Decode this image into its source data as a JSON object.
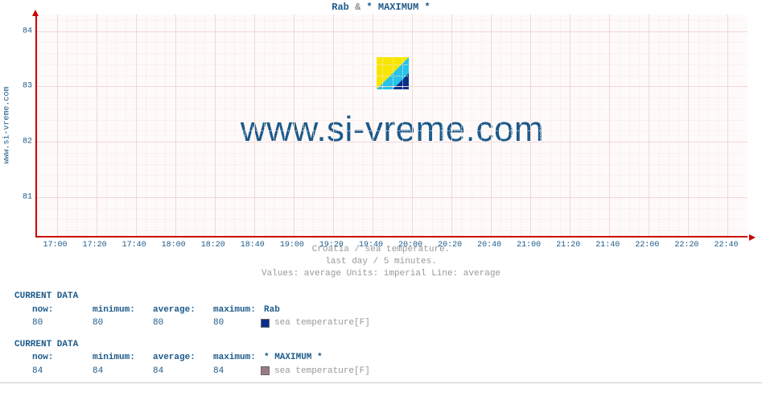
{
  "chart": {
    "title_parts": {
      "loc": "Rab",
      "amp": "&",
      "max": "* MAXIMUM *"
    },
    "ylabel_outer": "www.si-vreme.com",
    "watermark_text": "www.si-vreme.com",
    "caption_line1": "Croatia / sea temperature.",
    "caption_line2": "last day / 5 minutes.",
    "caption_line3": "Values: average  Units: imperial  Line: average",
    "type": "line",
    "y_axis": {
      "min": 80.3,
      "max": 84.3,
      "major_ticks": [
        81,
        82,
        83,
        84
      ],
      "minor_step": 0.2,
      "label_color": "#1c5a8a"
    },
    "x_axis": {
      "major_ticks": [
        "17:00",
        "17:20",
        "17:40",
        "18:00",
        "18:20",
        "18:40",
        "19:00",
        "19:20",
        "19:40",
        "20:00",
        "20:20",
        "20:40",
        "21:00",
        "21:20",
        "21:40",
        "22:00",
        "22:20",
        "22:40"
      ],
      "minor_per_major": 4,
      "label_color": "#1c5a8a"
    },
    "colors": {
      "background": "#fefafa",
      "axis": "#cc0000",
      "grid_major": "#f3d6d6",
      "grid_minor": "#f8e8e8",
      "title": "#1c5a8a",
      "watermark": "#1c5a8a"
    },
    "logo_colors": {
      "tri_a": "#f9e600",
      "tri_b": "#27c3e8",
      "tri_c": "#0a2e8a"
    },
    "series": []
  },
  "data_blocks": [
    {
      "heading": "CURRENT DATA",
      "headers": {
        "now": "now:",
        "minimum": "minimum:",
        "average": "average:",
        "maximum": "maximum:"
      },
      "series_name": "Rab",
      "values": {
        "now": "80",
        "minimum": "80",
        "average": "80",
        "maximum": "80"
      },
      "swatch_color": "#0a2e8a",
      "legend_label": "sea temperature[F]"
    },
    {
      "heading": "CURRENT DATA",
      "headers": {
        "now": "now:",
        "minimum": "minimum:",
        "average": "average:",
        "maximum": "maximum:"
      },
      "series_name": "* MAXIMUM *",
      "values": {
        "now": "84",
        "minimum": "84",
        "average": "84",
        "maximum": "84"
      },
      "swatch_color": "#9a7a88",
      "legend_label": "sea temperature[F]"
    }
  ]
}
